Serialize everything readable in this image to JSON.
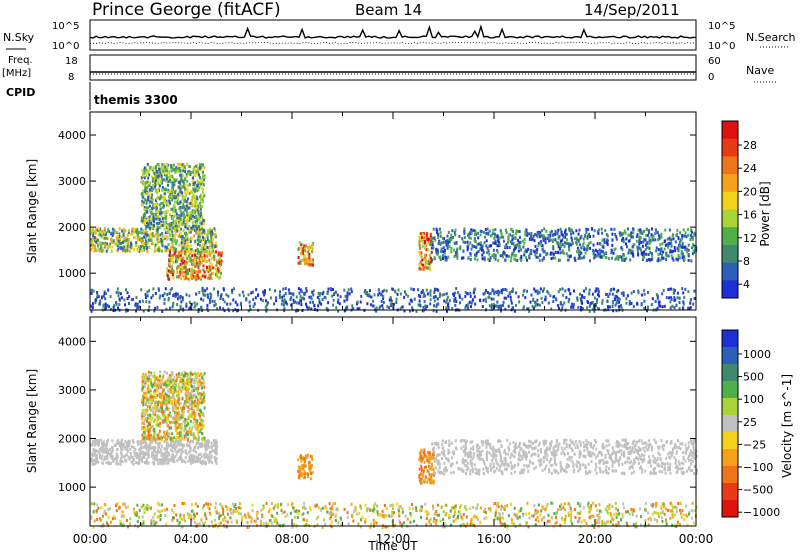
{
  "header": {
    "station": "Prince George (fitACF)",
    "beam": "Beam 14",
    "date": "14/Sep/2011"
  },
  "params": {
    "nsky_label": "N.Sky",
    "nsky_ticks": [
      "10^5",
      "10^0"
    ],
    "nsearch_label": "N.Search",
    "nsearch_ticks": [
      "10^5",
      "10^0"
    ],
    "freq_label": "Freq.",
    "freq_unit": "[MHz]",
    "freq_ticks": [
      "18",
      "8"
    ],
    "nave_label": "Nave",
    "nave_ticks": [
      "60",
      "0"
    ],
    "cpid_label": "CPID",
    "cpid_value": "themis 3300"
  },
  "chart_data": [
    {
      "type": "heatmap",
      "panel": "power",
      "xlabel": "Time UT",
      "ylabel": "Slant Range [km]",
      "ylim": [
        200,
        4500
      ],
      "xlim_hours": [
        0,
        24
      ],
      "xticks": [
        "00:00",
        "04:00",
        "08:00",
        "12:00",
        "16:00",
        "20:00",
        "00:00"
      ],
      "yticks": [
        "1000",
        "2000",
        "3000",
        "4000"
      ],
      "colorbar": {
        "label": "Power [dB]",
        "ticks": [
          "4",
          "8",
          "12",
          "16",
          "20",
          "24",
          "28"
        ],
        "colors": [
          "#1f2fd6",
          "#2b5fb8",
          "#3f8a6e",
          "#4fb04a",
          "#a8d43a",
          "#f2d21a",
          "#f5a21a",
          "#f0741a",
          "#e83a15",
          "#e01010"
        ]
      },
      "echo_regions": [
        {
          "t_start": 0.0,
          "t_end": 5.0,
          "range_min": 1500,
          "range_max": 2000,
          "level": "medium-high"
        },
        {
          "t_start": 2.0,
          "t_end": 4.5,
          "range_min": 2000,
          "range_max": 3400,
          "level": "medium"
        },
        {
          "t_start": 3.0,
          "t_end": 5.2,
          "range_min": 900,
          "range_max": 1500,
          "level": "high"
        },
        {
          "t_start": 8.2,
          "t_end": 8.8,
          "range_min": 1200,
          "range_max": 1700,
          "level": "high"
        },
        {
          "t_start": 13.0,
          "t_end": 13.5,
          "range_min": 1100,
          "range_max": 1900,
          "level": "high"
        },
        {
          "t_start": 13.5,
          "t_end": 24.0,
          "range_min": 1300,
          "range_max": 2000,
          "level": "low-medium"
        },
        {
          "t_start": 0.0,
          "t_end": 24.0,
          "range_min": 200,
          "range_max": 700,
          "level": "low"
        }
      ]
    },
    {
      "type": "heatmap",
      "panel": "velocity",
      "xlabel": "Time UT",
      "ylabel": "Slant Range [km]",
      "ylim": [
        200,
        4500
      ],
      "xlim_hours": [
        0,
        24
      ],
      "xticks": [
        "00:00",
        "04:00",
        "08:00",
        "12:00",
        "16:00",
        "20:00",
        "00:00"
      ],
      "yticks": [
        "1000",
        "2000",
        "3000",
        "4000"
      ],
      "colorbar": {
        "label": "Velocity [m s^-1]",
        "ticks": [
          "1000",
          "500",
          "100",
          "25",
          "−25",
          "−100",
          "−500",
          "−1000"
        ],
        "colors": [
          "#1f2fd6",
          "#2b5fb8",
          "#3f8a6e",
          "#4fb04a",
          "#a8d43a",
          "#c0c0c0",
          "#f2d21a",
          "#f5a21a",
          "#f0741a",
          "#e83a15",
          "#e01010"
        ]
      },
      "echo_regions": [
        {
          "t_start": 0.0,
          "t_end": 5.0,
          "range_min": 1500,
          "range_max": 2000,
          "level": "ground-scatter"
        },
        {
          "t_start": 2.0,
          "t_end": 4.5,
          "range_min": 2000,
          "range_max": 3400,
          "level": "mixed"
        },
        {
          "t_start": 8.2,
          "t_end": 8.8,
          "range_min": 1200,
          "range_max": 1700,
          "level": "negative"
        },
        {
          "t_start": 13.0,
          "t_end": 13.6,
          "range_min": 1100,
          "range_max": 1800,
          "level": "negative"
        },
        {
          "t_start": 13.5,
          "t_end": 24.0,
          "range_min": 1300,
          "range_max": 2000,
          "level": "ground-scatter"
        },
        {
          "t_start": 0.0,
          "t_end": 24.0,
          "range_min": 200,
          "range_max": 700,
          "level": "mixed"
        }
      ]
    }
  ]
}
